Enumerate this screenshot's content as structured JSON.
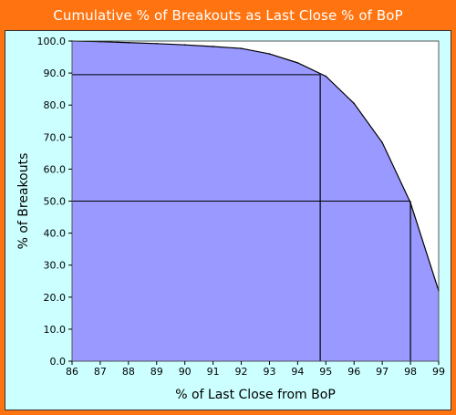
{
  "chart_data": {
    "type": "area",
    "title": "Cumulative % of Breakouts as Last Close % of  BoP",
    "xlabel": "% of Last Close from BoP",
    "ylabel": "% of Breakouts",
    "xlim": [
      86,
      99
    ],
    "ylim": [
      0,
      100
    ],
    "x_ticks": [
      "86",
      "87",
      "88",
      "89",
      "90",
      "91",
      "92",
      "93",
      "94",
      "95",
      "96",
      "97",
      "98",
      "99"
    ],
    "y_ticks": [
      "0.0",
      "10.0",
      "20.0",
      "30.0",
      "40.0",
      "50.0",
      "60.0",
      "70.0",
      "80.0",
      "90.0",
      "100.0"
    ],
    "series": [
      {
        "x": [
          86,
          87,
          88,
          89,
          90,
          91,
          92,
          93,
          94,
          95,
          96,
          97,
          98,
          99
        ],
        "y": [
          100,
          99.8,
          99.5,
          99.2,
          98.8,
          98.3,
          97.7,
          96,
          93.2,
          89,
          80.5,
          68.3,
          49.5,
          22
        ]
      }
    ],
    "reference_lines": [
      {
        "x": 94.8,
        "y": 89.5
      },
      {
        "x": 98,
        "y": 50
      }
    ],
    "colors": {
      "fill": "#9999ff",
      "line": "#000000",
      "frame": "#ff7410",
      "panel": "#ccffff",
      "plot_bg": "#ffffff"
    }
  }
}
